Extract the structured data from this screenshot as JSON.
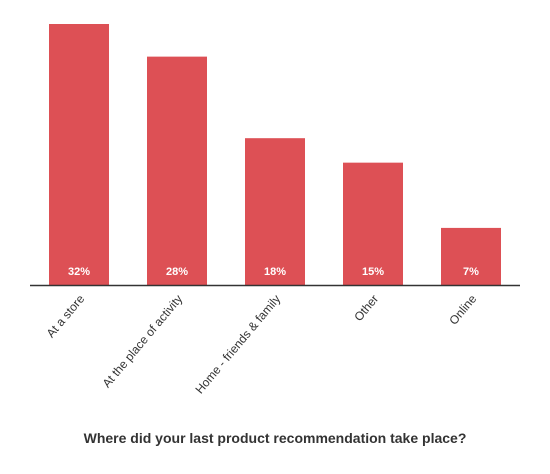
{
  "chart_data": {
    "type": "bar",
    "title": "Where did your last product recommendation take place?",
    "categories": [
      "At a store",
      "At the place of activity",
      "Home - friends & family",
      "Other",
      "Online"
    ],
    "values": [
      32,
      28,
      18,
      15,
      7
    ],
    "value_labels": [
      "32%",
      "28%",
      "18%",
      "15%",
      "7%"
    ],
    "color": "#dd5055"
  }
}
